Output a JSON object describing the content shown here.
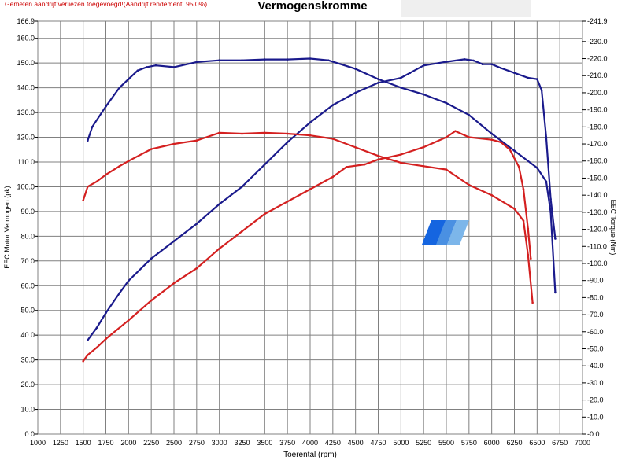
{
  "header": {
    "note": "Gemeten aandrijf verliezen toegevoegd!(Aandrijf rendement: 95.0%)",
    "title": "Vermogenskromme"
  },
  "chart_data": {
    "type": "line",
    "title": "Vermogenskromme",
    "xlabel": "Toerental (rpm)",
    "ylabel": "EEC Motor Vermogen (pk)",
    "ylabel_right": "EEC Torque (Nm)",
    "xlim": [
      1000,
      7000
    ],
    "ylim": [
      0,
      166.9
    ],
    "ylim_right": [
      0,
      241.9
    ],
    "grid": true,
    "x_ticks": [
      1000,
      1250,
      1500,
      1750,
      2000,
      2250,
      2500,
      2750,
      3000,
      3250,
      3500,
      3750,
      4000,
      4250,
      4500,
      4750,
      5000,
      5250,
      5500,
      5750,
      6000,
      6250,
      6500,
      6750,
      7000
    ],
    "y_ticks": [
      0,
      10,
      20,
      30,
      40,
      50,
      60,
      70,
      80,
      90,
      100,
      110,
      120,
      130,
      140,
      150,
      160,
      166.9
    ],
    "y_tick_labels": [
      "0.0",
      "10.0",
      "20.0",
      "30.0",
      "40.0",
      "50.0",
      "60.0",
      "70.0",
      "80.0",
      "90.0",
      "100.0",
      "110.0",
      "120.0",
      "130.0",
      "140.0",
      "150.0",
      "160.0",
      "166.9"
    ],
    "y_ticks_right": [
      0,
      10,
      20,
      30,
      40,
      50,
      60,
      70,
      80,
      90,
      100,
      110,
      120,
      130,
      140,
      150,
      160,
      170,
      180,
      190,
      200,
      210,
      220,
      230,
      241.9
    ],
    "y_tick_labels_right": [
      "0.0",
      "10.0",
      "20.0",
      "30.0",
      "40.0",
      "50.0",
      "60.0",
      "70.0",
      "80.0",
      "90.0",
      "100.0",
      "110.0",
      "120.0",
      "130.0",
      "140.0",
      "150.0",
      "160.0",
      "170.0",
      "180.0",
      "190.0",
      "200.0",
      "210.0",
      "220.0",
      "230.0",
      "241.9"
    ],
    "colors": {
      "blue": "#1a1a8c",
      "red": "#d42020"
    },
    "series": [
      {
        "color": "#1a1a8c",
        "axis": "left",
        "points": [
          [
            1550,
            38
          ],
          [
            1650,
            43
          ],
          [
            1750,
            49
          ],
          [
            1900,
            57
          ],
          [
            2000,
            62
          ],
          [
            2250,
            71
          ],
          [
            2500,
            78
          ],
          [
            2750,
            85
          ],
          [
            3000,
            93
          ],
          [
            3250,
            100
          ],
          [
            3500,
            109
          ],
          [
            3750,
            118
          ],
          [
            4000,
            126
          ],
          [
            4250,
            133
          ],
          [
            4500,
            138
          ],
          [
            4750,
            142
          ],
          [
            5000,
            144
          ],
          [
            5100,
            146
          ],
          [
            5250,
            149
          ],
          [
            5500,
            150.5
          ],
          [
            5700,
            151.5
          ],
          [
            5800,
            151
          ],
          [
            5900,
            149.5
          ],
          [
            6000,
            149.5
          ],
          [
            6100,
            148
          ],
          [
            6250,
            146
          ],
          [
            6400,
            144
          ],
          [
            6500,
            143.5
          ],
          [
            6550,
            139
          ],
          [
            6600,
            120
          ],
          [
            6650,
            95
          ],
          [
            6700,
            79
          ]
        ]
      },
      {
        "color": "#1a1a8c",
        "axis": "right",
        "points": [
          [
            1550,
            172
          ],
          [
            1600,
            180
          ],
          [
            1750,
            192
          ],
          [
            1900,
            203
          ],
          [
            2000,
            208
          ],
          [
            2100,
            213
          ],
          [
            2200,
            215
          ],
          [
            2300,
            216
          ],
          [
            2500,
            215
          ],
          [
            2750,
            218
          ],
          [
            3000,
            219
          ],
          [
            3250,
            219
          ],
          [
            3500,
            219.5
          ],
          [
            3750,
            219.5
          ],
          [
            4000,
            220
          ],
          [
            4200,
            219
          ],
          [
            4500,
            214
          ],
          [
            4750,
            208
          ],
          [
            5000,
            203
          ],
          [
            5250,
            199
          ],
          [
            5500,
            194
          ],
          [
            5750,
            187
          ],
          [
            6000,
            176
          ],
          [
            6250,
            166
          ],
          [
            6500,
            156
          ],
          [
            6600,
            148
          ],
          [
            6650,
            130
          ],
          [
            6700,
            83
          ]
        ]
      },
      {
        "color": "#d42020",
        "axis": "left",
        "points": [
          [
            1500,
            29.5
          ],
          [
            1550,
            32
          ],
          [
            1650,
            35
          ],
          [
            1750,
            38.5
          ],
          [
            2000,
            46
          ],
          [
            2250,
            54
          ],
          [
            2500,
            61
          ],
          [
            2750,
            67
          ],
          [
            3000,
            75
          ],
          [
            3250,
            82
          ],
          [
            3500,
            89
          ],
          [
            3750,
            94
          ],
          [
            4000,
            99
          ],
          [
            4250,
            104
          ],
          [
            4400,
            108
          ],
          [
            4600,
            109
          ],
          [
            4750,
            111
          ],
          [
            5000,
            113
          ],
          [
            5250,
            116
          ],
          [
            5500,
            120
          ],
          [
            5600,
            122.5
          ],
          [
            5750,
            120
          ],
          [
            6000,
            119
          ],
          [
            6100,
            118
          ],
          [
            6200,
            115
          ],
          [
            6300,
            108
          ],
          [
            6350,
            99
          ],
          [
            6400,
            83
          ],
          [
            6430,
            71
          ]
        ]
      },
      {
        "color": "#d42020",
        "axis": "right",
        "points": [
          [
            1500,
            137
          ],
          [
            1550,
            145
          ],
          [
            1650,
            148
          ],
          [
            1750,
            152
          ],
          [
            1900,
            157
          ],
          [
            2000,
            160
          ],
          [
            2250,
            167
          ],
          [
            2500,
            170
          ],
          [
            2750,
            172
          ],
          [
            3000,
            176.5
          ],
          [
            3250,
            176
          ],
          [
            3500,
            176.5
          ],
          [
            3750,
            176
          ],
          [
            4000,
            175
          ],
          [
            4250,
            173
          ],
          [
            4500,
            168
          ],
          [
            4750,
            163
          ],
          [
            5000,
            159
          ],
          [
            5250,
            157
          ],
          [
            5500,
            155
          ],
          [
            5750,
            146
          ],
          [
            6000,
            140
          ],
          [
            6250,
            132
          ],
          [
            6350,
            125
          ],
          [
            6400,
            105
          ],
          [
            6450,
            77
          ]
        ]
      }
    ]
  }
}
